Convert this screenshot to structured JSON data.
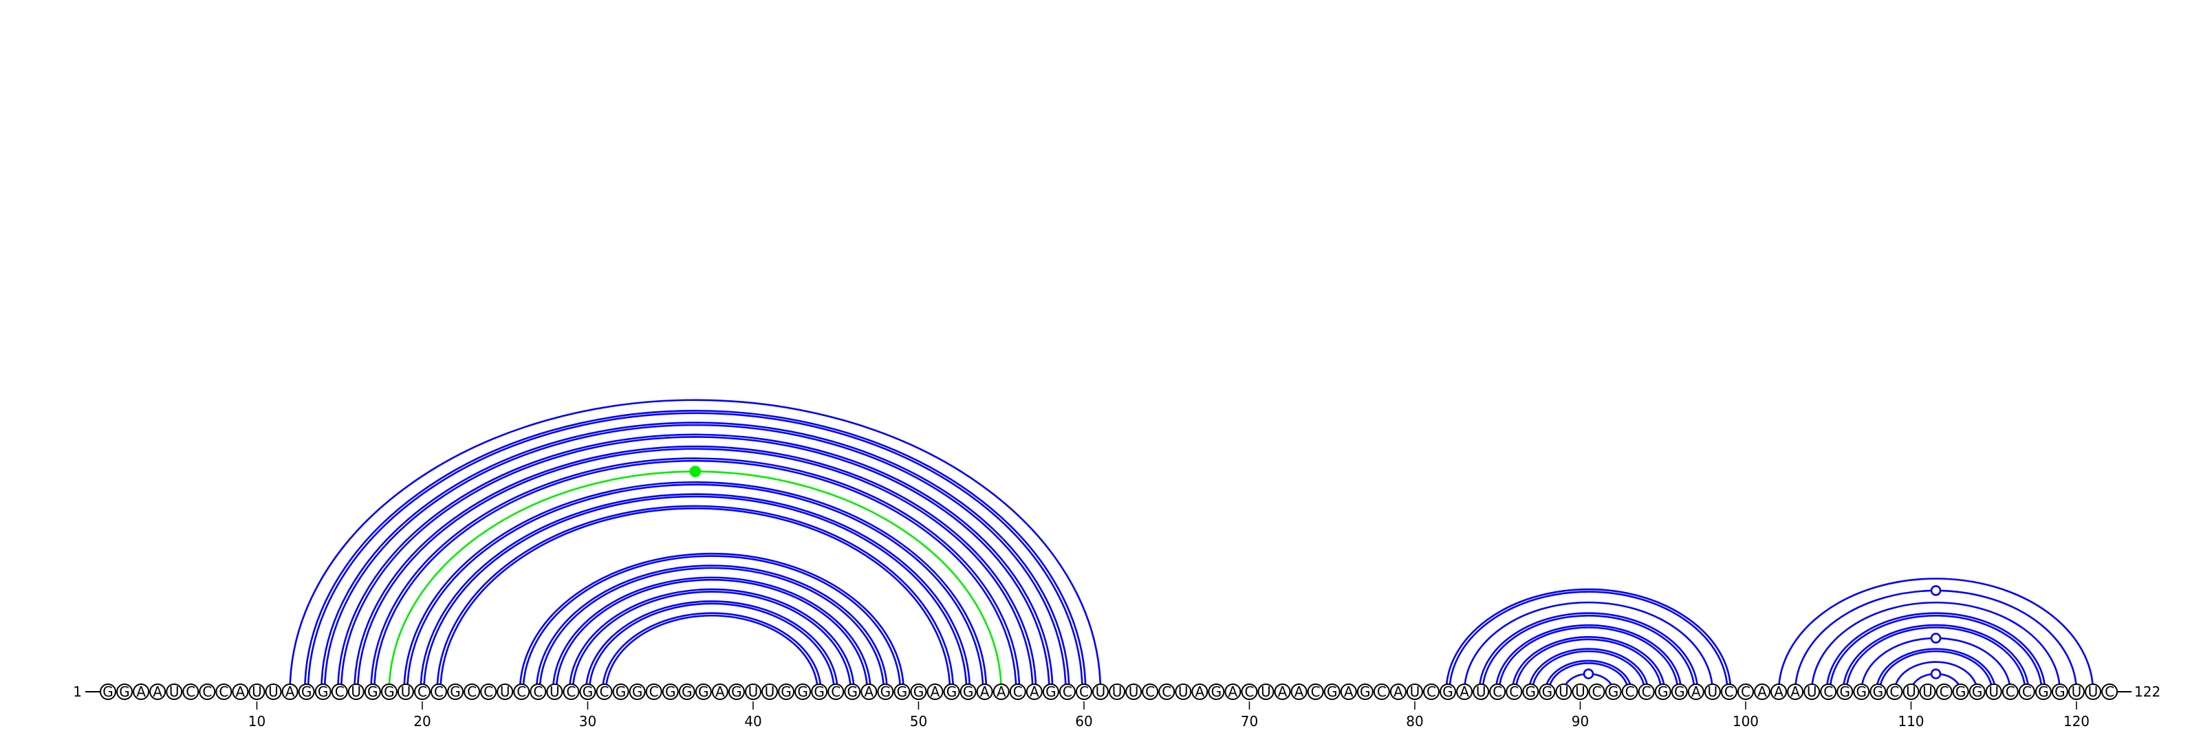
{
  "sequence": "GGAAUCCCAUUAGGCUGGUCCGCCUCCUCGCGGCGGGAGUUGGGCGAGGGAGGAACAGCCUUUCCUAGACUAACGAGCAUCGAUCCGGUUCGCCGGAUCCAAAUCGGGCUUCGGUCCGGUUC",
  "start_label": "1",
  "end_label": "122",
  "ticks": [
    10,
    20,
    30,
    40,
    50,
    60,
    70,
    80,
    90,
    100,
    110,
    120
  ],
  "colors": {
    "pair_arc": "#0000ff",
    "highlight_arc": "#00ee00",
    "backbone": "#000000"
  },
  "pairs": [
    {
      "i": 12,
      "j": 61,
      "arcs": 1,
      "color": "blue"
    },
    {
      "i": 13,
      "j": 60,
      "arcs": 2,
      "color": "blue"
    },
    {
      "i": 14,
      "j": 59,
      "arcs": 2,
      "color": "blue"
    },
    {
      "i": 15,
      "j": 58,
      "arcs": 2,
      "color": "blue"
    },
    {
      "i": 16,
      "j": 57,
      "arcs": 2,
      "color": "blue"
    },
    {
      "i": 17,
      "j": 56,
      "arcs": 2,
      "color": "blue"
    },
    {
      "i": 18,
      "j": 55,
      "arcs": 1,
      "color": "green",
      "marker": "filled"
    },
    {
      "i": 19,
      "j": 54,
      "arcs": 2,
      "color": "blue"
    },
    {
      "i": 20,
      "j": 53,
      "arcs": 2,
      "color": "blue"
    },
    {
      "i": 21,
      "j": 52,
      "arcs": 2,
      "color": "blue"
    },
    {
      "i": 26,
      "j": 49,
      "arcs": 2,
      "color": "blue"
    },
    {
      "i": 27,
      "j": 48,
      "arcs": 2,
      "color": "blue"
    },
    {
      "i": 28,
      "j": 47,
      "arcs": 2,
      "color": "blue"
    },
    {
      "i": 29,
      "j": 46,
      "arcs": 2,
      "color": "blue"
    },
    {
      "i": 30,
      "j": 45,
      "arcs": 2,
      "color": "blue"
    },
    {
      "i": 31,
      "j": 44,
      "arcs": 2,
      "color": "blue"
    },
    {
      "i": 82,
      "j": 99,
      "arcs": 2,
      "color": "blue"
    },
    {
      "i": 83,
      "j": 98,
      "arcs": 1,
      "color": "blue"
    },
    {
      "i": 84,
      "j": 97,
      "arcs": 2,
      "color": "blue"
    },
    {
      "i": 85,
      "j": 96,
      "arcs": 2,
      "color": "blue"
    },
    {
      "i": 86,
      "j": 95,
      "arcs": 2,
      "color": "blue"
    },
    {
      "i": 87,
      "j": 94,
      "arcs": 2,
      "color": "blue"
    },
    {
      "i": 88,
      "j": 93,
      "arcs": 2,
      "color": "blue"
    },
    {
      "i": 89,
      "j": 92,
      "arcs": 1,
      "color": "blue",
      "marker": "open"
    },
    {
      "i": 102,
      "j": 121,
      "arcs": 1,
      "color": "blue"
    },
    {
      "i": 103,
      "j": 120,
      "arcs": 1,
      "color": "blue",
      "marker": "open"
    },
    {
      "i": 104,
      "j": 119,
      "arcs": 1,
      "color": "blue"
    },
    {
      "i": 105,
      "j": 118,
      "arcs": 2,
      "color": "blue"
    },
    {
      "i": 106,
      "j": 117,
      "arcs": 2,
      "color": "blue"
    },
    {
      "i": 107,
      "j": 116,
      "arcs": 1,
      "color": "blue",
      "marker": "open"
    },
    {
      "i": 108,
      "j": 115,
      "arcs": 2,
      "color": "blue"
    },
    {
      "i": 109,
      "j": 114,
      "arcs": 1,
      "color": "blue"
    },
    {
      "i": 110,
      "j": 113,
      "arcs": 1,
      "color": "blue",
      "marker": "open"
    }
  ]
}
